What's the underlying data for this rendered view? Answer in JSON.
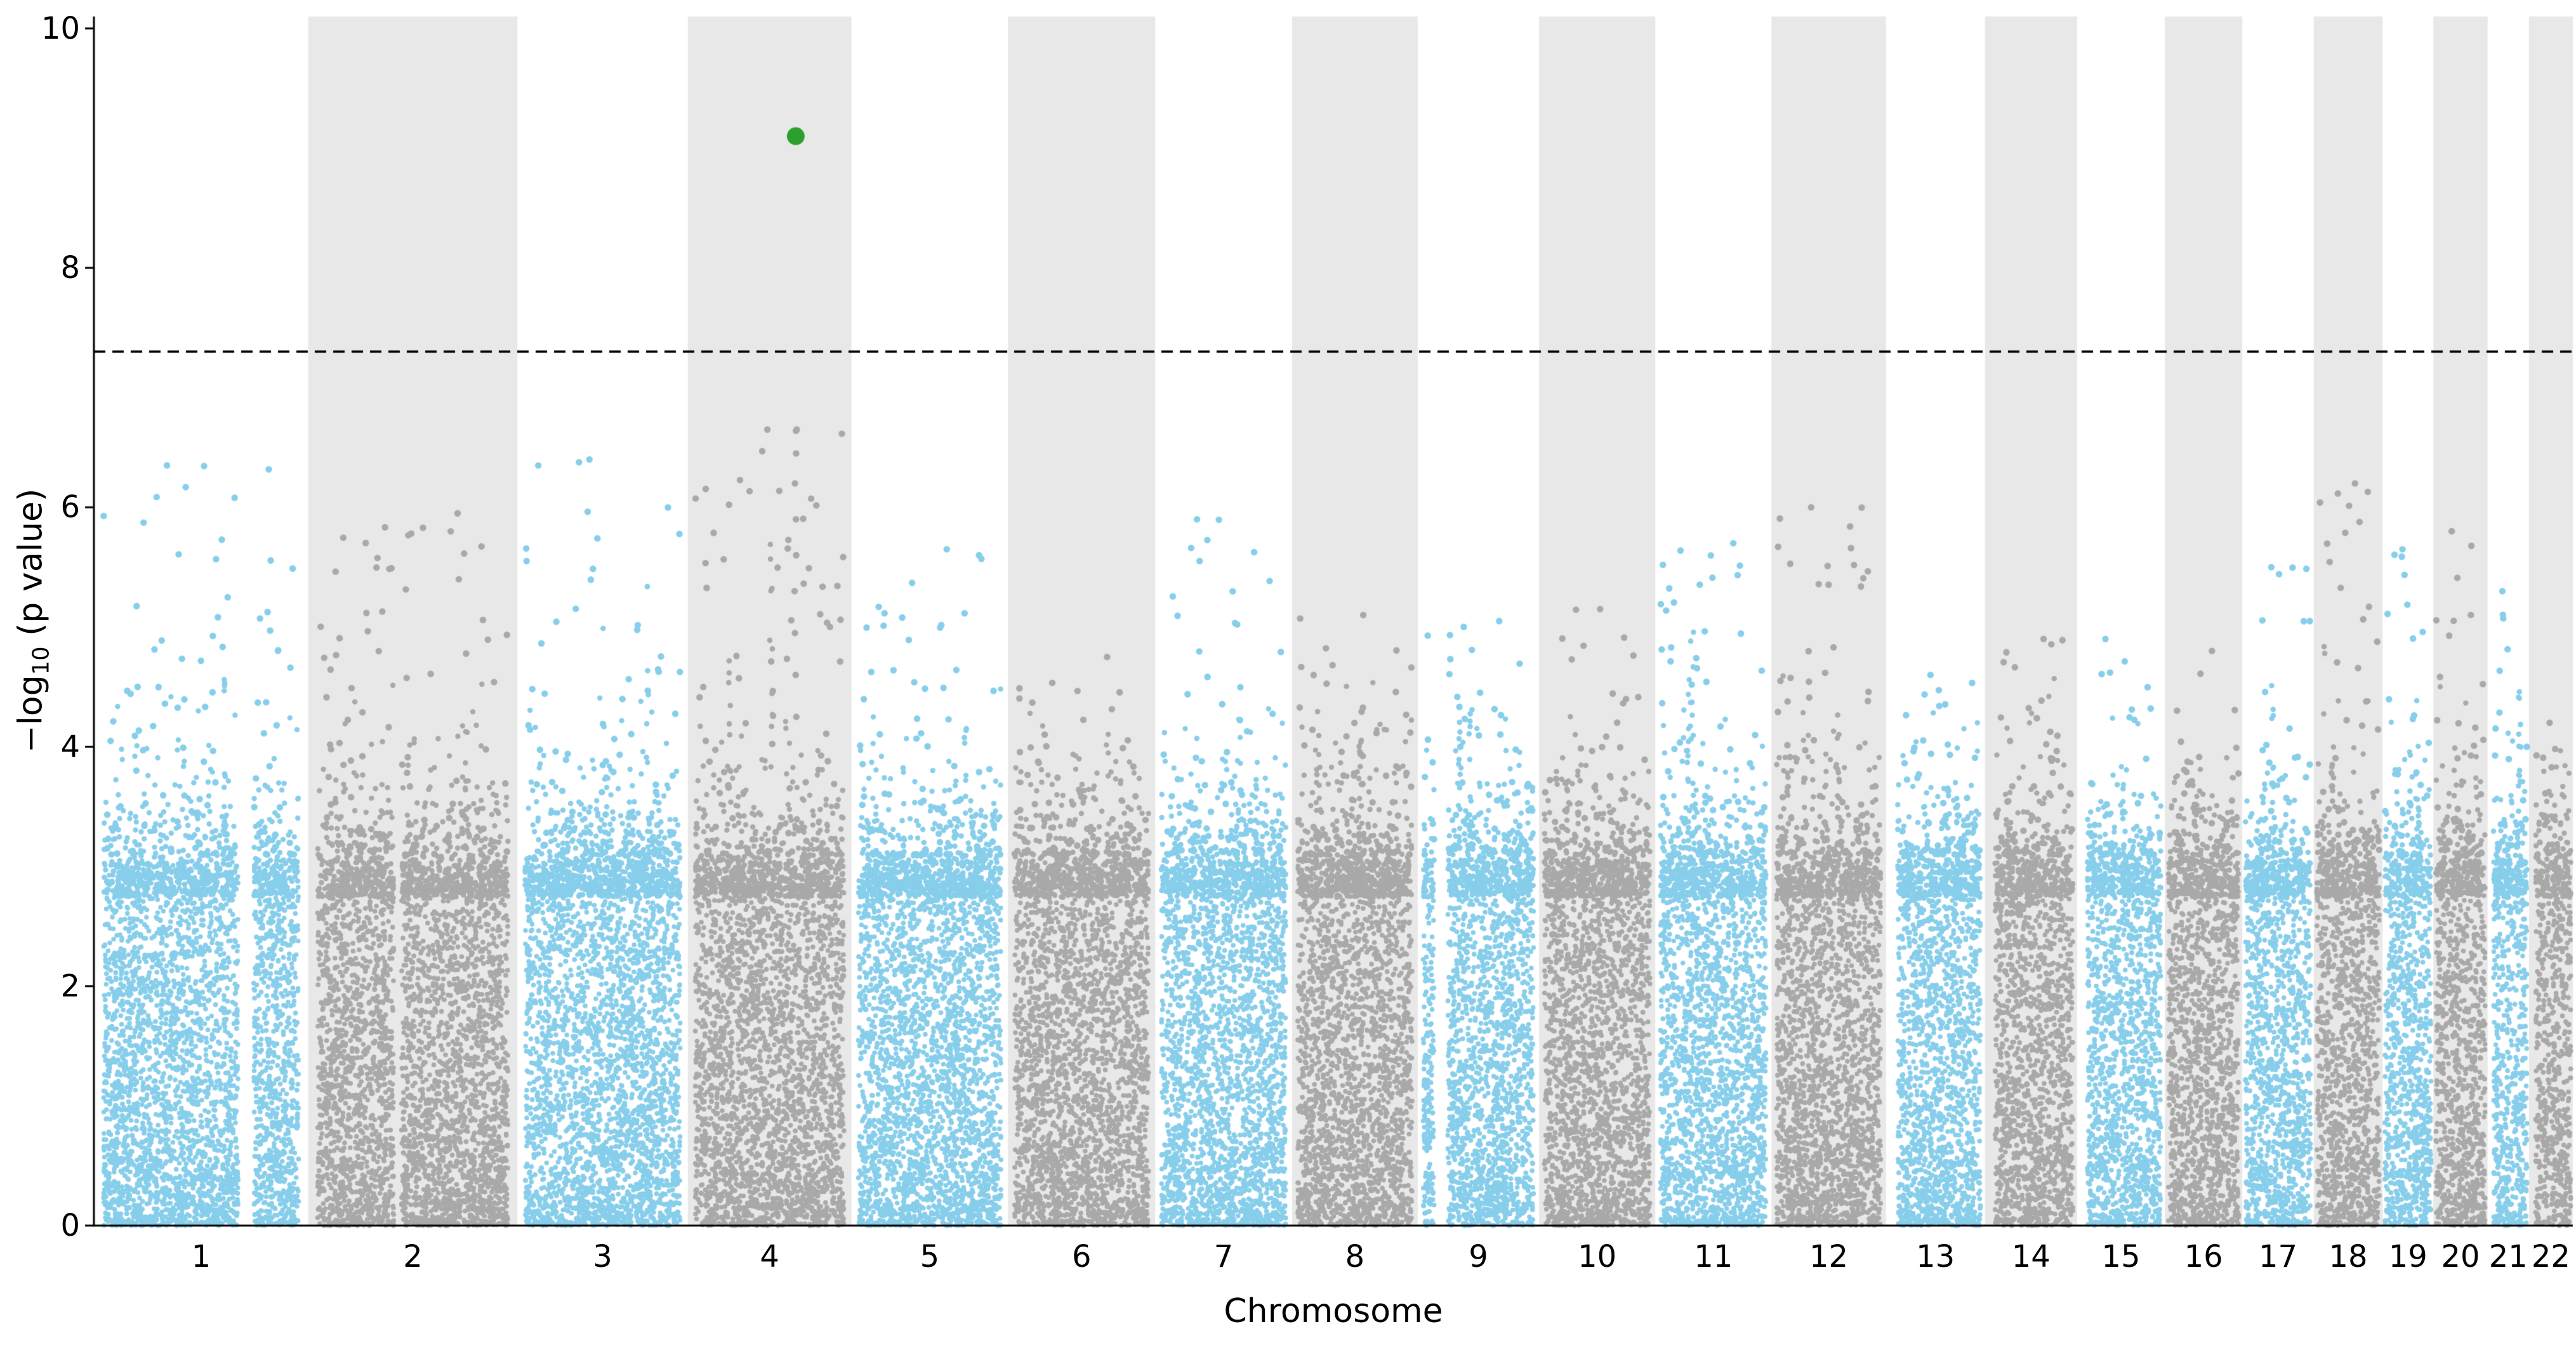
{
  "chart_data": {
    "type": "scatter",
    "variant": "manhattan-plot",
    "title": "",
    "xlabel": "Chromosome",
    "ylabel": "−log10 (p value)",
    "ylabel_parts": {
      "pre": "−log",
      "sub": "10",
      "post": " (p value)"
    },
    "ylim": [
      0,
      10.1
    ],
    "yticks": [
      0,
      2,
      4,
      6,
      8,
      10
    ],
    "ytick_labels": [
      "0",
      "2",
      "4",
      "6",
      "8",
      "10"
    ],
    "grid": false,
    "legend": null,
    "threshold_line": {
      "y": 7.3,
      "style": "dashed",
      "color": "#000000"
    },
    "highlight_point": {
      "chromosome": "4",
      "neg_log10_p": 9.1,
      "position_frac": 0.66,
      "color": "#2ca02c"
    },
    "colors": {
      "odd_chromosome_points": "#87CEEB",
      "even_chromosome_points": "#A9A9A9",
      "band_background": "#E8E8E8",
      "axis": "#000000",
      "figure_background": "#FFFFFF"
    },
    "chromosomes": [
      {
        "label": "1",
        "rel_length": 249,
        "max_peak": 6.35,
        "gap": [
          0.69,
          0.77
        ]
      },
      {
        "label": "2",
        "rel_length": 243,
        "max_peak": 5.95,
        "gap": [
          0.4,
          0.44
        ]
      },
      {
        "label": "3",
        "rel_length": 198,
        "max_peak": 6.4,
        "gap": null
      },
      {
        "label": "4",
        "rel_length": 190,
        "max_peak": 6.65,
        "gap": null,
        "stack": {
          "frac": 0.66,
          "values": [
            4.25,
            4.6,
            4.95,
            5.3,
            5.6,
            5.9,
            6.2,
            6.45,
            6.65
          ]
        }
      },
      {
        "label": "5",
        "rel_length": 182,
        "max_peak": 5.65,
        "gap": null
      },
      {
        "label": "6",
        "rel_length": 171,
        "max_peak": 4.75,
        "gap": null
      },
      {
        "label": "7",
        "rel_length": 159,
        "max_peak": 5.9,
        "gap": null
      },
      {
        "label": "8",
        "rel_length": 146,
        "max_peak": 5.1,
        "gap": null
      },
      {
        "label": "9",
        "rel_length": 141,
        "max_peak": 5.05,
        "gap": [
          0.1,
          0.22
        ]
      },
      {
        "label": "10",
        "rel_length": 135,
        "max_peak": 5.15,
        "gap": null
      },
      {
        "label": "11",
        "rel_length": 135,
        "max_peak": 5.7,
        "gap": null
      },
      {
        "label": "12",
        "rel_length": 133,
        "max_peak": 6.0,
        "gap": null
      },
      {
        "label": "13",
        "rel_length": 115,
        "max_peak": 4.6,
        "gap": [
          0.0,
          0.08
        ]
      },
      {
        "label": "14",
        "rel_length": 107,
        "max_peak": 4.9,
        "gap": [
          0.0,
          0.07
        ]
      },
      {
        "label": "15",
        "rel_length": 102,
        "max_peak": 4.9,
        "gap": [
          0.0,
          0.08
        ]
      },
      {
        "label": "16",
        "rel_length": 90,
        "max_peak": 4.8,
        "gap": null
      },
      {
        "label": "17",
        "rel_length": 83,
        "max_peak": 5.5,
        "gap": null
      },
      {
        "label": "18",
        "rel_length": 80,
        "max_peak": 6.2,
        "gap": null
      },
      {
        "label": "19",
        "rel_length": 59,
        "max_peak": 5.65,
        "gap": null
      },
      {
        "label": "20",
        "rel_length": 63,
        "max_peak": 5.8,
        "gap": null
      },
      {
        "label": "21",
        "rel_length": 48,
        "max_peak": 5.3,
        "gap": [
          0.0,
          0.1
        ]
      },
      {
        "label": "22",
        "rel_length": 51,
        "max_peak": 4.2,
        "gap": [
          0.0,
          0.12
        ]
      }
    ]
  }
}
